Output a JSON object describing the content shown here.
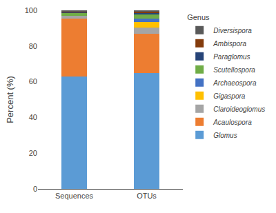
{
  "chart_data": {
    "type": "bar",
    "stacked": true,
    "categories": [
      "Sequences",
      "OTUs"
    ],
    "series": [
      {
        "name": "Glomus",
        "color": "#5b9bd5",
        "values": [
          63.0,
          65.0
        ]
      },
      {
        "name": "Acaulospora",
        "color": "#ed7d31",
        "values": [
          32.5,
          22.0
        ]
      },
      {
        "name": "Claroideoglomus",
        "color": "#a5a5a5",
        "values": [
          1.5,
          3.5
        ]
      },
      {
        "name": "Gigaspora",
        "color": "#ffc000",
        "values": [
          0.0,
          3.0
        ]
      },
      {
        "name": "Archaeospora",
        "color": "#4472c4",
        "values": [
          0.0,
          2.0
        ]
      },
      {
        "name": "Scutellospora",
        "color": "#70ad47",
        "values": [
          1.5,
          2.0
        ]
      },
      {
        "name": "Paraglomus",
        "color": "#264478",
        "values": [
          0.5,
          1.0
        ]
      },
      {
        "name": "Ambispora",
        "color": "#843c0c",
        "values": [
          0.5,
          1.0
        ]
      },
      {
        "name": "Diversispora",
        "color": "#595959",
        "values": [
          0.5,
          0.5
        ]
      }
    ],
    "ylabel": "Percent (%)",
    "ylim": [
      0,
      100
    ],
    "yticks": [
      0,
      20,
      40,
      60,
      80,
      100
    ],
    "legend_title": "Genus",
    "legend": "upper right",
    "grid": false
  }
}
